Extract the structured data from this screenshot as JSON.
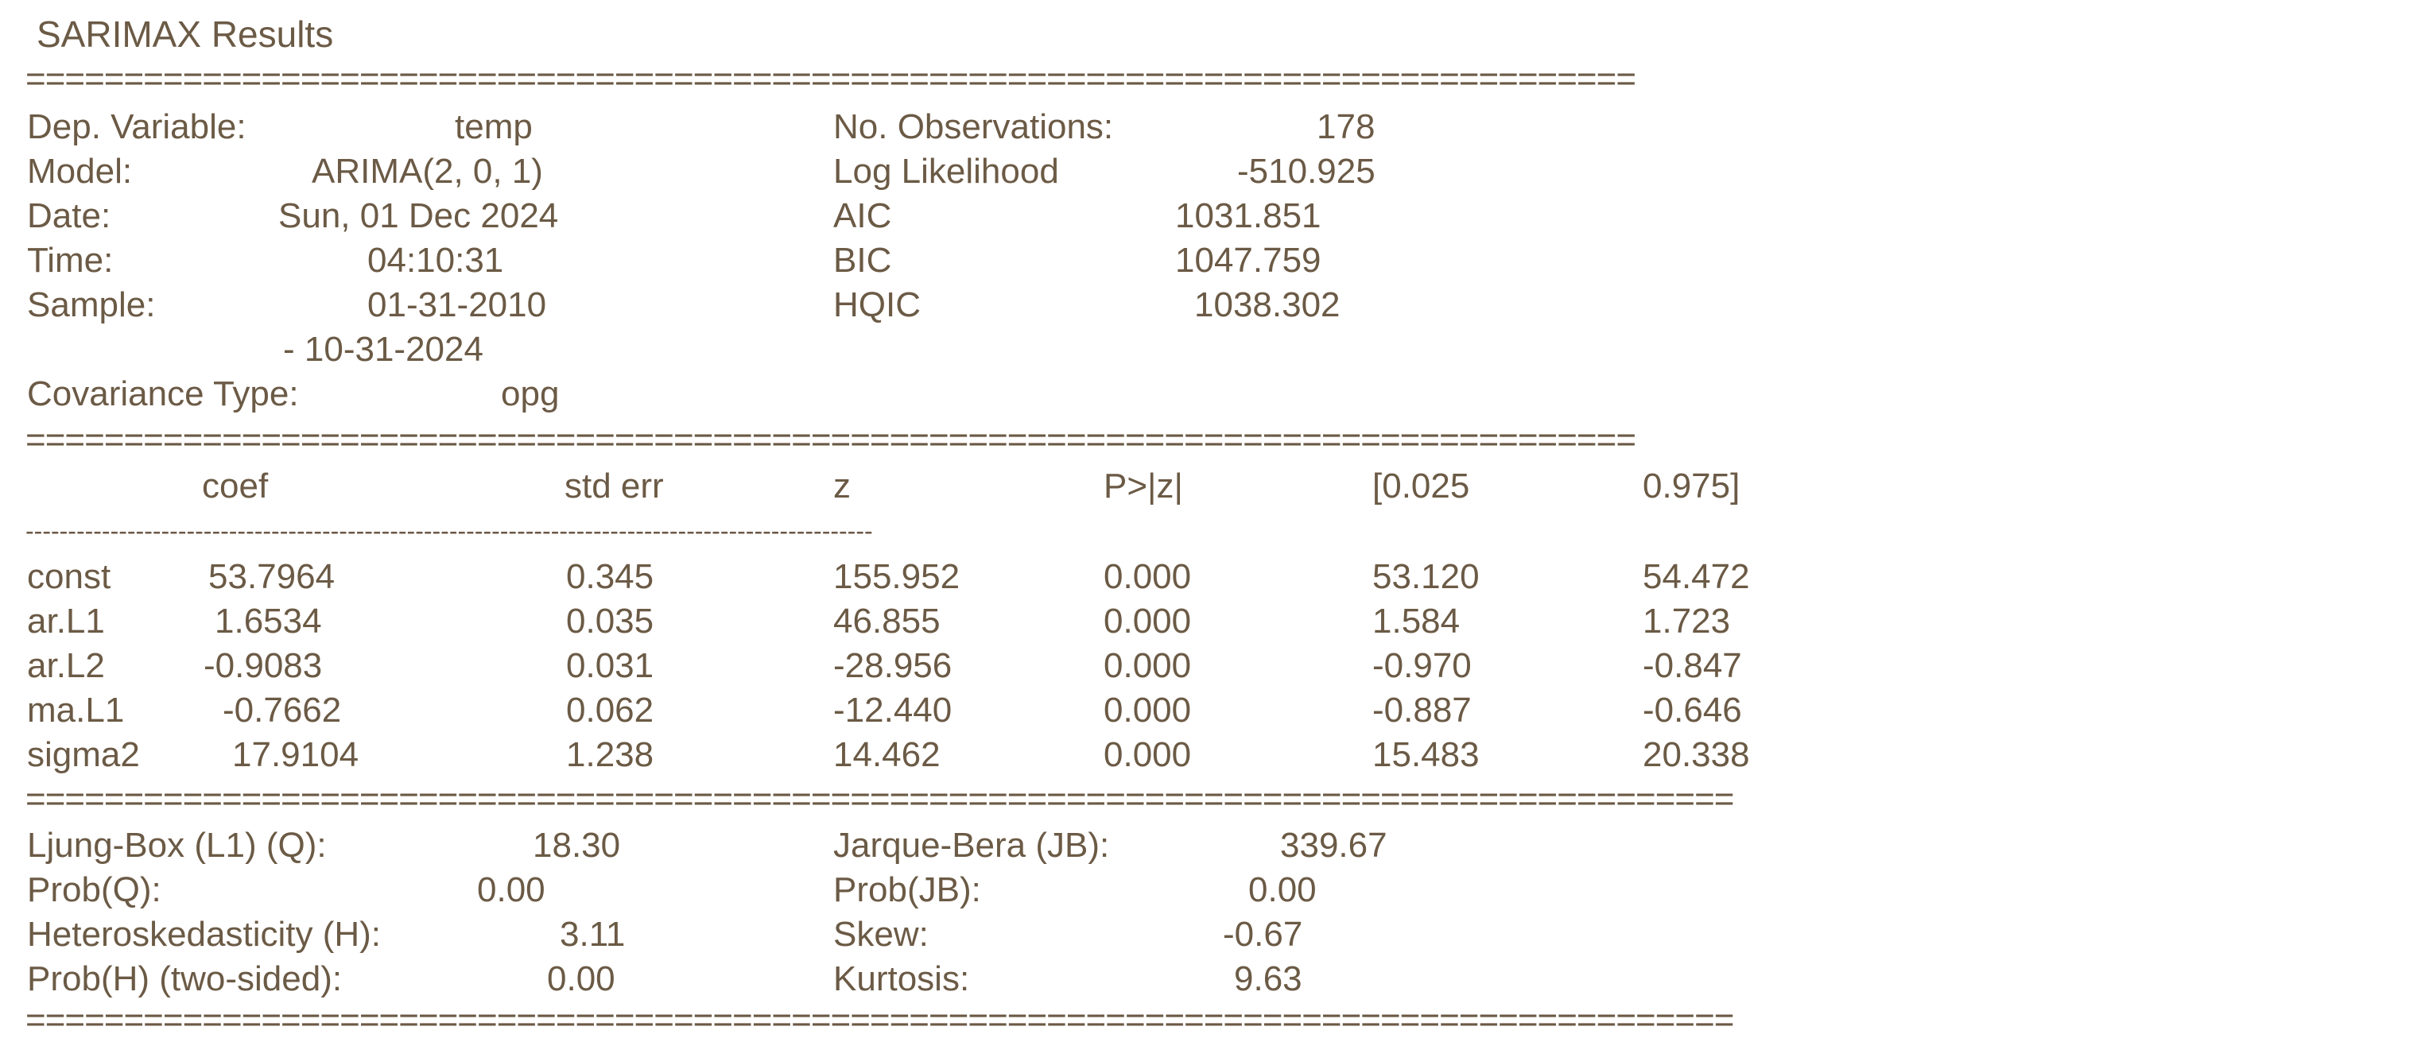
{
  "title": "SARIMAX Results",
  "rules": {
    "double_short": "==================================================================================",
    "double_long": "=======================================================================================",
    "dashes": "----------------------------------------------------------------------------------------------------"
  },
  "header": {
    "left": [
      {
        "label": "Dep. Variable:",
        "value": "temp"
      },
      {
        "label": "Model:",
        "value": "ARIMA(2, 0, 1)"
      },
      {
        "label": "Date:",
        "value": "Sun, 01 Dec 2024"
      },
      {
        "label": "Time:",
        "value": "04:10:31"
      },
      {
        "label": "Sample:",
        "value": "01-31-2010"
      },
      {
        "label": "",
        "value": "- 10-31-2024"
      },
      {
        "label": "Covariance Type:",
        "value": "opg"
      }
    ],
    "right": [
      {
        "label": "No. Observations:",
        "value": "178"
      },
      {
        "label": "Log Likelihood",
        "value": "-510.925"
      },
      {
        "label": "AIC",
        "value": "1031.851"
      },
      {
        "label": "BIC",
        "value": "1047.759"
      },
      {
        "label": "HQIC",
        "value": "1038.302"
      }
    ]
  },
  "coef_table": {
    "columns": [
      "coef",
      "std err",
      "z",
      "P>|z|",
      "[0.025",
      "0.975]"
    ],
    "rows": [
      {
        "name": "const",
        "coef": "53.7964",
        "std_err": "0.345",
        "z": "155.952",
        "p": "0.000",
        "lo": "53.120",
        "hi": "54.472"
      },
      {
        "name": "ar.L1",
        "coef": "1.6534",
        "std_err": "0.035",
        "z": "46.855",
        "p": "0.000",
        "lo": "1.584",
        "hi": "1.723"
      },
      {
        "name": "ar.L2",
        "coef": "-0.9083",
        "std_err": "0.031",
        "z": "-28.956",
        "p": "0.000",
        "lo": "-0.970",
        "hi": "-0.847"
      },
      {
        "name": "ma.L1",
        "coef": "-0.7662",
        "std_err": "0.062",
        "z": "-12.440",
        "p": "0.000",
        "lo": "-0.887",
        "hi": "-0.646"
      },
      {
        "name": "sigma2",
        "coef": "17.9104",
        "std_err": "1.238",
        "z": "14.462",
        "p": "0.000",
        "lo": "15.483",
        "hi": "20.338"
      }
    ]
  },
  "diagnostics": {
    "left": [
      {
        "label": "Ljung-Box (L1) (Q):",
        "value": "18.30"
      },
      {
        "label": "Prob(Q):",
        "value": "0.00"
      },
      {
        "label": "Heteroskedasticity (H):",
        "value": "3.11"
      },
      {
        "label": "Prob(H) (two-sided):",
        "value": "0.00"
      }
    ],
    "right": [
      {
        "label": "Jarque-Bera (JB):",
        "value": "339.67"
      },
      {
        "label": "Prob(JB):",
        "value": "0.00"
      },
      {
        "label": "Skew:",
        "value": "-0.67"
      },
      {
        "label": "Kurtosis:",
        "value": "9.63"
      }
    ]
  }
}
